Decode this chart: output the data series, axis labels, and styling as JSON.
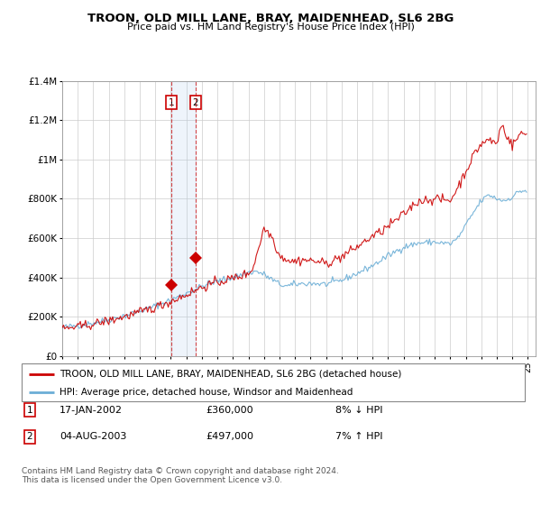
{
  "title": "TROON, OLD MILL LANE, BRAY, MAIDENHEAD, SL6 2BG",
  "subtitle": "Price paid vs. HM Land Registry's House Price Index (HPI)",
  "legend_line1": "TROON, OLD MILL LANE, BRAY, MAIDENHEAD, SL6 2BG (detached house)",
  "legend_line2": "HPI: Average price, detached house, Windsor and Maidenhead",
  "footer": "Contains HM Land Registry data © Crown copyright and database right 2024.\nThis data is licensed under the Open Government Licence v3.0.",
  "transaction1_date": "17-JAN-2002",
  "transaction1_price": "£360,000",
  "transaction1_hpi": "8% ↓ HPI",
  "transaction2_date": "04-AUG-2003",
  "transaction2_price": "£497,000",
  "transaction2_hpi": "7% ↑ HPI",
  "hpi_color": "#6baed6",
  "price_color": "#cc0000",
  "shade_color": "#ddeeff",
  "ylim": [
    0,
    1400000
  ],
  "yticks": [
    0,
    200000,
    400000,
    600000,
    800000,
    1000000,
    1200000,
    1400000
  ],
  "ytick_labels": [
    "£0",
    "£200K",
    "£400K",
    "£600K",
    "£800K",
    "£1M",
    "£1.2M",
    "£1.4M"
  ],
  "transaction1_x": 2002.05,
  "transaction1_y": 360000,
  "transaction2_x": 2003.6,
  "transaction2_y": 497000,
  "xmin": 1995,
  "xmax": 2025.5
}
